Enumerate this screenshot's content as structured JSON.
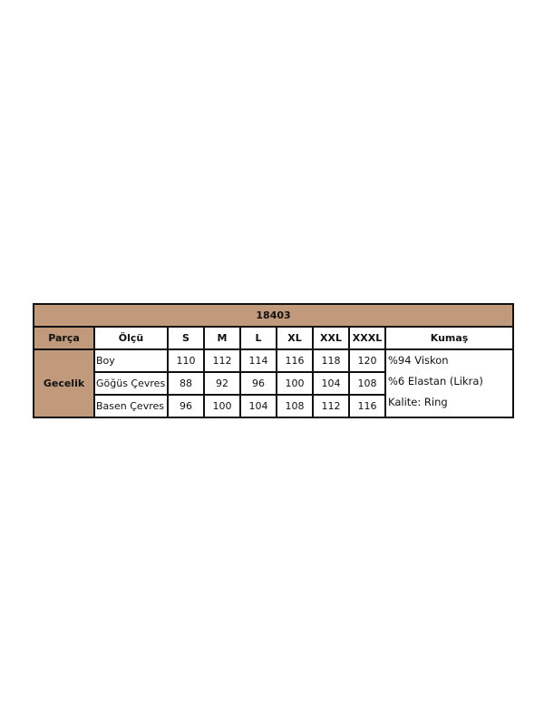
{
  "table": {
    "title": "18403",
    "headers": [
      "Parça",
      "Ölçü",
      "S",
      "M",
      "L",
      "XL",
      "XXL",
      "XXXL",
      "Kumaş"
    ],
    "part": "Gecelik",
    "rows": [
      {
        "label": "Boy",
        "values": [
          "110",
          "112",
          "114",
          "116",
          "118",
          "120"
        ]
      },
      {
        "label": "Göğüs Çevres",
        "values": [
          "88",
          "92",
          "96",
          "100",
          "104",
          "108"
        ]
      },
      {
        "label": "Basen Çevres",
        "values": [
          "96",
          "100",
          "104",
          "108",
          "112",
          "116"
        ]
      }
    ],
    "fabric": [
      "%94 Viskon",
      "%6 Elastan (Likra)",
      "Kalite: Ring"
    ]
  },
  "colors": {
    "header_fill": "#c09a7a",
    "border": "#111111"
  }
}
